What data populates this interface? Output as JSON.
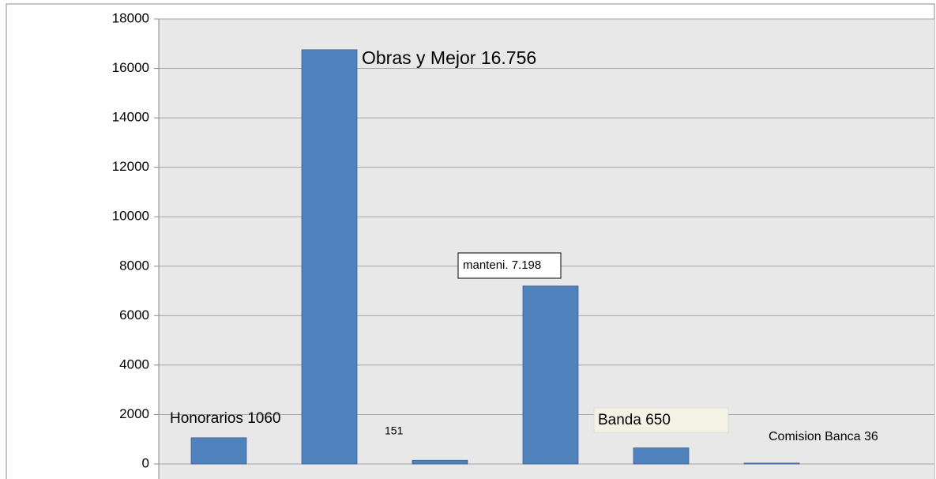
{
  "chart_data": {
    "type": "bar",
    "categories": [
      null,
      null,
      null,
      null,
      null,
      null
    ],
    "values": [
      1060,
      16756,
      151,
      7198,
      650,
      36
    ],
    "value_labels": [
      "Honorarios  1060",
      "Obras y Mejor 16.756",
      "151",
      "manteni. 7.198",
      "Banda  650",
      "Comision Banca 36"
    ],
    "color": "#4f81bd",
    "ylim": [
      0,
      18000
    ],
    "yticks": [
      0,
      2000,
      4000,
      6000,
      8000,
      10000,
      12000,
      14000,
      16000,
      18000
    ],
    "grid": true
  }
}
